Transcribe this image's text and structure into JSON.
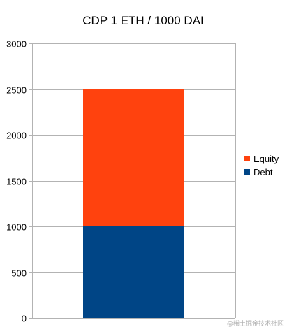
{
  "chart_data": {
    "type": "bar",
    "stacked": true,
    "title": "CDP 1 ETH / 1000 DAI",
    "categories": [
      ""
    ],
    "series": [
      {
        "name": "Debt",
        "values": [
          1000
        ],
        "color": "#004586"
      },
      {
        "name": "Equity",
        "values": [
          1500
        ],
        "color": "#ff420e"
      }
    ],
    "ylim": [
      0,
      3000
    ],
    "yticks": [
      "0",
      "500",
      "1000",
      "1500",
      "2000",
      "2500",
      "3000"
    ],
    "ytick_values": [
      0,
      500,
      1000,
      1500,
      2000,
      2500,
      3000
    ],
    "xlabel": "",
    "ylabel": "",
    "grid": true,
    "grid_color": "#b3b3b3",
    "legend": {
      "position": "right",
      "entries": [
        "Equity",
        "Debt"
      ]
    }
  },
  "watermark": "@稀土掘金技术社区"
}
